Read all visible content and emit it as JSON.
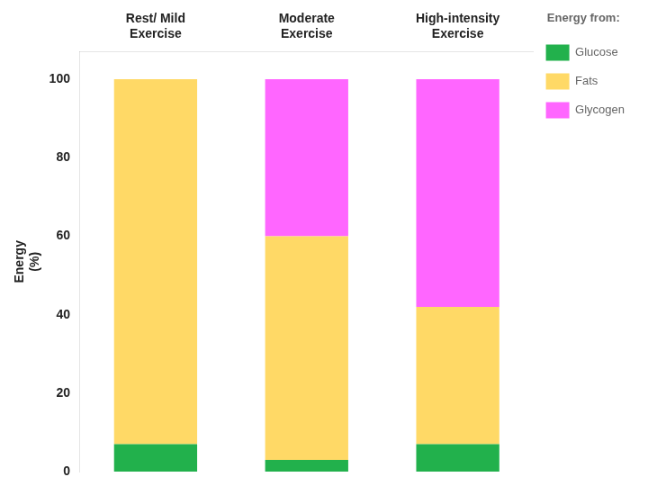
{
  "chart_data": {
    "type": "bar",
    "stacked": true,
    "categories": [
      "Rest/ Mild\nExercise",
      "Moderate\nExercise",
      "High-intensity\nExercise"
    ],
    "series": [
      {
        "name": "Glucose",
        "color": "#22b14c",
        "values": [
          7,
          3,
          7
        ]
      },
      {
        "name": "Fats",
        "color": "#ffd966",
        "values": [
          93,
          57,
          35
        ]
      },
      {
        "name": "Glycogen",
        "color": "#ff66ff",
        "values": [
          0,
          40,
          58
        ]
      }
    ],
    "ylabel": "Energy\n(%)",
    "legend_title": "Energy from:",
    "legend": "upper right",
    "ylim": [
      0,
      107
    ],
    "yticks": [
      0,
      20,
      40,
      60,
      80,
      100
    ],
    "grid": false
  }
}
